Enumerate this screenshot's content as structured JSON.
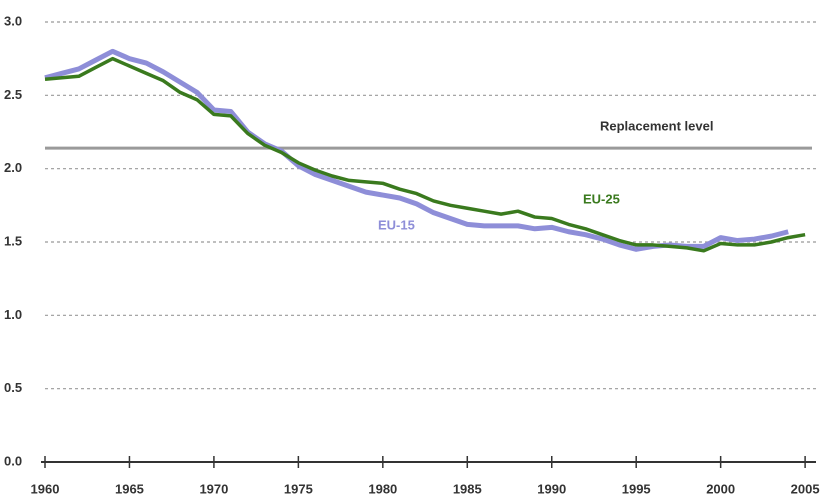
{
  "chart_data": {
    "type": "line",
    "x": [
      1960,
      1961,
      1962,
      1963,
      1964,
      1965,
      1966,
      1967,
      1968,
      1969,
      1970,
      1971,
      1972,
      1973,
      1974,
      1975,
      1976,
      1977,
      1978,
      1979,
      1980,
      1981,
      1982,
      1983,
      1984,
      1985,
      1986,
      1987,
      1988,
      1989,
      1990,
      1991,
      1992,
      1993,
      1994,
      1995,
      1996,
      1997,
      1998,
      1999,
      2000,
      2001,
      2002,
      2003,
      2004,
      2005
    ],
    "series": [
      {
        "name": "EU-15",
        "color": "#8e8ed8",
        "values": [
          2.62,
          2.65,
          2.68,
          2.74,
          2.8,
          2.75,
          2.72,
          2.66,
          2.59,
          2.52,
          2.4,
          2.39,
          2.25,
          2.17,
          2.12,
          2.02,
          1.96,
          1.92,
          1.88,
          1.84,
          1.82,
          1.8,
          1.76,
          1.7,
          1.66,
          1.62,
          1.61,
          1.61,
          1.61,
          1.59,
          1.6,
          1.57,
          1.55,
          1.52,
          1.48,
          1.45,
          1.47,
          1.48,
          1.47,
          1.47,
          1.53,
          1.51,
          1.52,
          1.54,
          1.57,
          null
        ]
      },
      {
        "name": "EU-25",
        "color": "#3a7a1e",
        "values": [
          2.61,
          2.62,
          2.63,
          2.69,
          2.75,
          2.7,
          2.65,
          2.6,
          2.52,
          2.47,
          2.37,
          2.36,
          2.24,
          2.16,
          2.11,
          2.04,
          1.99,
          1.95,
          1.92,
          1.91,
          1.9,
          1.86,
          1.83,
          1.78,
          1.75,
          1.73,
          1.71,
          1.69,
          1.71,
          1.67,
          1.66,
          1.62,
          1.59,
          1.55,
          1.51,
          1.48,
          1.48,
          1.47,
          1.46,
          1.44,
          1.49,
          1.48,
          1.48,
          1.5,
          1.53,
          1.55
        ]
      }
    ],
    "reference_line": {
      "label": "Replacement level",
      "value": 2.14,
      "color": "#9a9a9a"
    },
    "xlim": [
      1960,
      2006
    ],
    "xticks": [
      1960,
      1965,
      1970,
      1975,
      1980,
      1985,
      1990,
      1995,
      2000,
      2005
    ],
    "ylim": [
      0,
      3
    ],
    "yticks": [
      {
        "value": 0,
        "label": "0.0"
      },
      {
        "value": 0.5,
        "label": "0.5"
      },
      {
        "value": 1,
        "label": "1.0"
      },
      {
        "value": 1.5,
        "label": "1.5"
      },
      {
        "value": 2,
        "label": "2.0"
      },
      {
        "value": 2.5,
        "label": "2.5"
      },
      {
        "value": 3,
        "label": "3.0"
      }
    ],
    "grid": true
  }
}
